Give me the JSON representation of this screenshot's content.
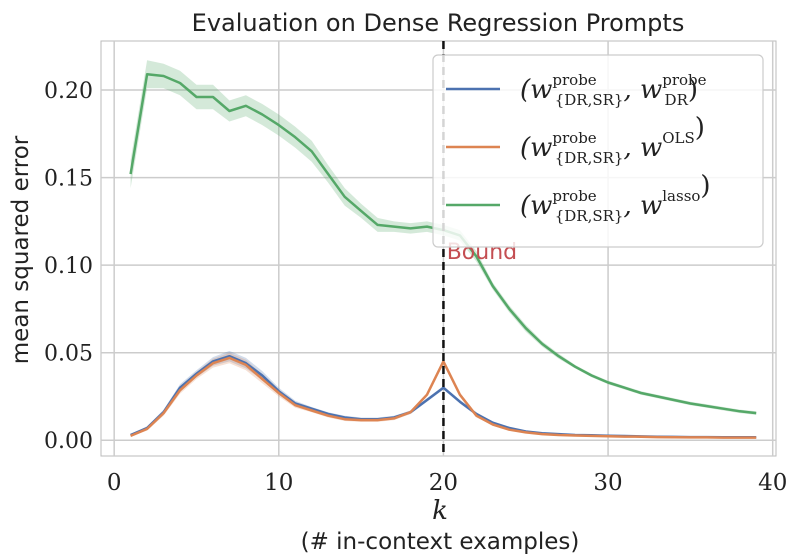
{
  "chart_data": {
    "type": "line",
    "title": "Evaluation on Dense Regression Prompts",
    "xlabel": "k",
    "xlabel_sub": "(# in-context examples)",
    "ylabel": "mean squared error",
    "xlim": [
      -0.8,
      40.2
    ],
    "ylim": [
      -0.009,
      0.228
    ],
    "xticks": [
      0,
      10,
      20,
      30,
      40
    ],
    "yticks": [
      0.0,
      0.05,
      0.1,
      0.15,
      0.2
    ],
    "ytick_labels": [
      "0.00",
      "0.05",
      "0.10",
      "0.15",
      "0.20"
    ],
    "grid": true,
    "legend_placement": "top-right",
    "x": [
      1,
      2,
      3,
      4,
      5,
      6,
      7,
      8,
      9,
      10,
      11,
      12,
      13,
      14,
      15,
      16,
      17,
      18,
      19,
      20,
      21,
      22,
      23,
      24,
      25,
      26,
      27,
      28,
      29,
      30,
      31,
      32,
      33,
      34,
      35,
      36,
      37,
      38,
      39
    ],
    "series": [
      {
        "name": "(w^probe_{DR,SR}, w^probe_DR)",
        "legend": {
          "base": "(w",
          "sup1": "probe",
          "sub1": "{DR,SR}",
          "mid": ", w",
          "sup2": "probe",
          "sub2": "DR",
          "end": ")"
        },
        "color": "#4c72b0",
        "values": [
          0.003,
          0.007,
          0.016,
          0.03,
          0.038,
          0.045,
          0.048,
          0.044,
          0.037,
          0.028,
          0.021,
          0.018,
          0.015,
          0.013,
          0.012,
          0.012,
          0.013,
          0.016,
          0.023,
          0.03,
          0.022,
          0.015,
          0.01,
          0.007,
          0.005,
          0.004,
          0.0035,
          0.003,
          0.0028,
          0.0026,
          0.0024,
          0.0022,
          0.002,
          0.0019,
          0.0018,
          0.0018,
          0.0017,
          0.0017,
          0.0017
        ],
        "band": [
          0.0005,
          0.001,
          0.0015,
          0.002,
          0.002,
          0.0025,
          0.003,
          0.003,
          0.0025,
          0.002,
          0.0015,
          0.001,
          0.001,
          0.001,
          0.001,
          0.001,
          0.001,
          0.001,
          0.001,
          0.001,
          0.001,
          0.001,
          0.0005,
          0.0005,
          0.0005,
          0.0005,
          0.0005,
          0.0005,
          0.0005,
          0.0005,
          0.0005,
          0.0005,
          0.0005,
          0.0005,
          0.0005,
          0.0005,
          0.0005,
          0.0005,
          0.0005
        ]
      },
      {
        "name": "(w^probe_{DR,SR}, w^OLS)",
        "legend": {
          "base": "(w",
          "sup1": "probe",
          "sub1": "{DR,SR}",
          "mid": ", w",
          "sup2": "OLS",
          "sub2": "",
          "end": ")"
        },
        "color": "#dd8452",
        "values": [
          0.0025,
          0.0065,
          0.0155,
          0.0285,
          0.037,
          0.044,
          0.047,
          0.043,
          0.035,
          0.027,
          0.02,
          0.017,
          0.014,
          0.012,
          0.0115,
          0.0115,
          0.0125,
          0.016,
          0.026,
          0.045,
          0.026,
          0.014,
          0.009,
          0.006,
          0.0045,
          0.0035,
          0.003,
          0.0027,
          0.0025,
          0.0023,
          0.0021,
          0.002,
          0.0018,
          0.0017,
          0.0016,
          0.0016,
          0.0015,
          0.0015,
          0.0015
        ],
        "band": [
          0.0005,
          0.001,
          0.0015,
          0.002,
          0.002,
          0.0025,
          0.003,
          0.003,
          0.0025,
          0.002,
          0.0015,
          0.001,
          0.001,
          0.001,
          0.001,
          0.001,
          0.001,
          0.001,
          0.001,
          0.0015,
          0.001,
          0.001,
          0.0005,
          0.0005,
          0.0005,
          0.0005,
          0.0005,
          0.0005,
          0.0005,
          0.0005,
          0.0005,
          0.0005,
          0.0005,
          0.0005,
          0.0005,
          0.0005,
          0.0005,
          0.0005,
          0.0005
        ]
      },
      {
        "name": "(w^probe_{DR,SR}, w^lasso)",
        "legend": {
          "base": "(w",
          "sup1": "probe",
          "sub1": "{DR,SR}",
          "mid": ", w",
          "sup2": "lasso",
          "sub2": "",
          "end": ")"
        },
        "color": "#55a868",
        "values": [
          0.152,
          0.209,
          0.208,
          0.204,
          0.196,
          0.196,
          0.188,
          0.191,
          0.186,
          0.18,
          0.173,
          0.165,
          0.152,
          0.139,
          0.131,
          0.123,
          0.122,
          0.121,
          0.122,
          0.12,
          0.117,
          0.105,
          0.088,
          0.075,
          0.064,
          0.055,
          0.048,
          0.042,
          0.037,
          0.033,
          0.03,
          0.027,
          0.025,
          0.023,
          0.021,
          0.0195,
          0.018,
          0.0165,
          0.0155
        ],
        "band": [
          0.008,
          0.008,
          0.007,
          0.007,
          0.007,
          0.007,
          0.006,
          0.006,
          0.006,
          0.006,
          0.006,
          0.006,
          0.005,
          0.005,
          0.004,
          0.004,
          0.003,
          0.003,
          0.003,
          0.003,
          0.003,
          0.003,
          0.002,
          0.002,
          0.002,
          0.0015,
          0.0015,
          0.001,
          0.001,
          0.001,
          0.001,
          0.001,
          0.001,
          0.001,
          0.001,
          0.001,
          0.001,
          0.001,
          0.001
        ]
      }
    ],
    "annotations": [
      {
        "type": "vline",
        "x": 20,
        "color": "#111111",
        "style": "dashed"
      },
      {
        "type": "text",
        "text": "Bound",
        "x": 20.2,
        "y": 0.1035,
        "color": "#c44e52"
      }
    ]
  }
}
